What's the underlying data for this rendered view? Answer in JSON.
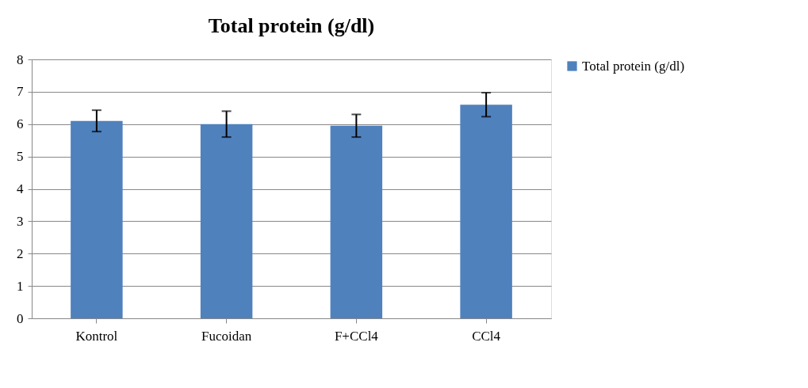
{
  "chart_data": {
    "type": "bar",
    "title": "Total protein (g/dl)",
    "categories": [
      "Kontrol",
      "Fucoidan",
      "F+CCl4",
      "CCl4"
    ],
    "series": [
      {
        "name": "Total protein (g/dl)",
        "color": "#4f81bd",
        "values": [
          6.1,
          6.0,
          5.95,
          6.6
        ],
        "errors": [
          0.33,
          0.4,
          0.35,
          0.37
        ]
      }
    ],
    "ylim": [
      0,
      8
    ],
    "yticks": [
      0,
      1,
      2,
      3,
      4,
      5,
      6,
      7,
      8
    ],
    "grid": "y",
    "legend": "right"
  }
}
